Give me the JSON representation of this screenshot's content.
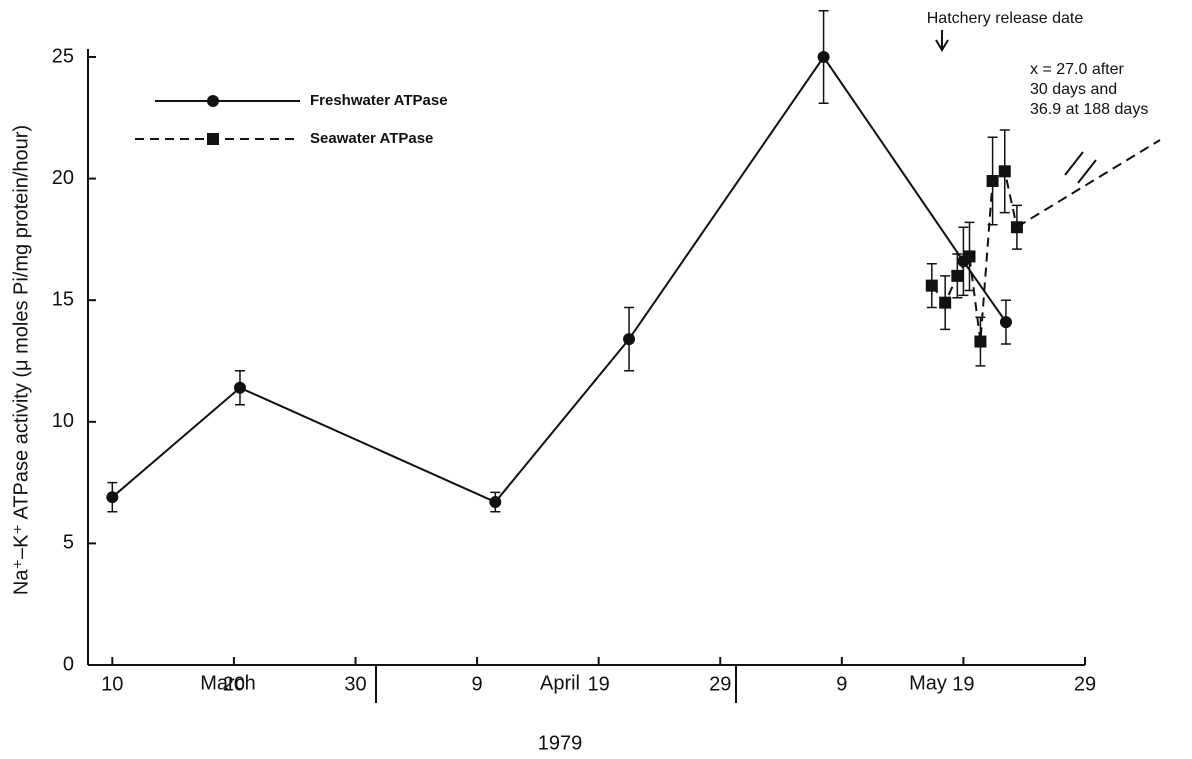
{
  "chart_data": {
    "type": "line",
    "y_label": "Na⁺–K⁺ ATPase activity (μ moles Pi/mg protein/hour)",
    "months": [
      "March",
      "April",
      "May"
    ],
    "year": "1979",
    "annotations": {
      "release": "Hatchery release date",
      "note": [
        "x = 27.0 after",
        "30 days and",
        "36.9 at 188 days"
      ]
    },
    "xlim": [
      8,
      90
    ],
    "xticks": [
      {
        "value": 10,
        "label": "10"
      },
      {
        "value": 20,
        "label": "20"
      },
      {
        "value": 30,
        "label": "30"
      },
      {
        "value": 40,
        "label": "9"
      },
      {
        "value": 50,
        "label": "19"
      },
      {
        "value": 60,
        "label": "29"
      },
      {
        "value": 70,
        "label": "9"
      },
      {
        "value": 80,
        "label": "19"
      },
      {
        "value": 90,
        "label": "29"
      }
    ],
    "ylim": [
      0,
      25
    ],
    "yticks": [
      0,
      5,
      10,
      15,
      20,
      25
    ],
    "series": [
      {
        "name": "Freshwater ATPase",
        "color": "#111111",
        "dash": false,
        "marker": "circle",
        "x": [
          10,
          20.5,
          41.5,
          52.5,
          68.5,
          80,
          83.5
        ],
        "values": [
          6.9,
          11.4,
          6.7,
          13.4,
          25.0,
          16.6,
          14.1
        ],
        "errors": [
          0.6,
          0.7,
          0.4,
          1.3,
          1.9,
          1.4,
          0.9
        ]
      },
      {
        "name": "Seawater ATPase",
        "color": "#111111",
        "dash": true,
        "marker": "square",
        "x": [
          77.4,
          78.5,
          79.5,
          80.5,
          81.4,
          82.4,
          83.4,
          84.4
        ],
        "values": [
          15.6,
          14.9,
          16.0,
          16.8,
          13.3,
          19.9,
          20.3,
          18.0
        ],
        "errors": [
          0.9,
          1.1,
          0.9,
          1.4,
          1.0,
          1.8,
          1.7,
          0.9
        ]
      }
    ]
  }
}
